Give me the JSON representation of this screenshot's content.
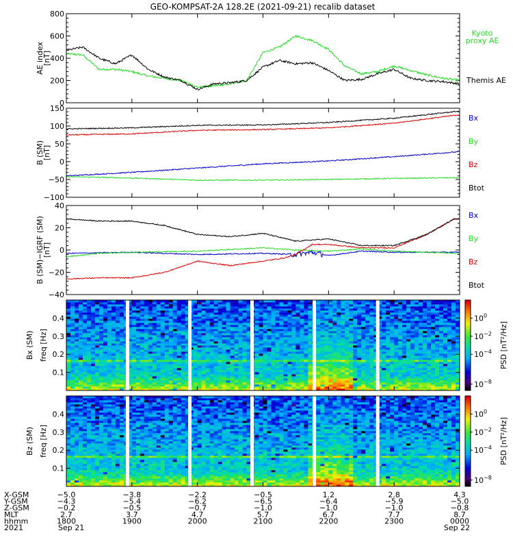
{
  "title": "GEO-KOMPSAT-2A 128.2E (2021-09-21) recalib dataset",
  "colors": {
    "black": "#000000",
    "red": "#dd0000",
    "green": "#22dd22",
    "blue": "#0000cc"
  },
  "chart_data": [
    {
      "type": "line",
      "panel": "ae",
      "ylabel": [
        "AE index",
        "[nT]"
      ],
      "ylim": [
        0,
        800
      ],
      "yticks": [
        "0",
        "200",
        "400",
        "600",
        "800"
      ],
      "xlim": [
        0,
        360
      ],
      "series": [
        {
          "name": "Kyoto proxy AE",
          "label_lines": [
            "Kyoto",
            "proxy AE"
          ],
          "color": "#22dd22",
          "x": [
            0,
            15,
            30,
            45,
            60,
            75,
            90,
            105,
            120,
            135,
            150,
            165,
            180,
            195,
            210,
            225,
            240,
            255,
            270,
            285,
            300,
            315,
            330,
            345,
            360
          ],
          "values": [
            440,
            430,
            300,
            300,
            280,
            240,
            220,
            200,
            140,
            150,
            170,
            200,
            450,
            500,
            600,
            560,
            480,
            330,
            260,
            280,
            330,
            290,
            250,
            220,
            200
          ]
        },
        {
          "name": "Themis AE",
          "label_lines": [
            "Themis AE"
          ],
          "color": "#000000",
          "x": [
            0,
            15,
            30,
            45,
            60,
            75,
            90,
            105,
            120,
            135,
            150,
            165,
            180,
            195,
            210,
            225,
            240,
            255,
            270,
            285,
            300,
            315,
            330,
            345,
            360
          ],
          "values": [
            470,
            500,
            400,
            350,
            430,
            300,
            230,
            200,
            120,
            170,
            180,
            200,
            320,
            380,
            350,
            360,
            290,
            200,
            210,
            260,
            300,
            220,
            200,
            190,
            170
          ]
        }
      ]
    },
    {
      "type": "line",
      "panel": "b_sm",
      "ylabel": [
        "B (SM)",
        "[nT]"
      ],
      "ylim": [
        -100,
        150
      ],
      "yticks": [
        "−100",
        "−50",
        "0",
        "50",
        "100",
        "150"
      ],
      "xlim": [
        0,
        360
      ],
      "series": [
        {
          "name": "Bx",
          "color": "#0000cc",
          "x": [
            0,
            60,
            120,
            180,
            240,
            300,
            360
          ],
          "values": [
            -40,
            -30,
            -18,
            -6,
            2,
            14,
            28
          ]
        },
        {
          "name": "By",
          "color": "#22dd22",
          "x": [
            0,
            60,
            120,
            180,
            240,
            300,
            360
          ],
          "values": [
            -42,
            -46,
            -52,
            -52,
            -50,
            -47,
            -45
          ]
        },
        {
          "name": "Bz",
          "color": "#dd0000",
          "x": [
            0,
            60,
            120,
            180,
            240,
            300,
            360
          ],
          "values": [
            75,
            78,
            88,
            90,
            95,
            108,
            132
          ]
        },
        {
          "name": "Btot",
          "color": "#000000",
          "x": [
            0,
            60,
            120,
            180,
            240,
            300,
            360
          ],
          "values": [
            92,
            95,
            102,
            103,
            110,
            122,
            142
          ]
        }
      ]
    },
    {
      "type": "line",
      "panel": "b_minus_igrf",
      "ylabel": [
        "B (SM)−IGRF (SM)",
        "[nT]"
      ],
      "ylim": [
        -40,
        40
      ],
      "yticks": [
        "−40",
        "−20",
        "0",
        "20",
        "40"
      ],
      "xlim": [
        0,
        360
      ],
      "series": [
        {
          "name": "Bx",
          "color": "#0000cc",
          "x": [
            0,
            60,
            120,
            180,
            210,
            225,
            240,
            270,
            300,
            330,
            360
          ],
          "values": [
            -3,
            -2,
            -4,
            -3,
            -4,
            -2,
            -5,
            -1,
            -2,
            -2,
            -2
          ]
        },
        {
          "name": "By",
          "color": "#22dd22",
          "x": [
            0,
            30,
            60,
            120,
            180,
            210,
            240,
            270,
            300,
            330,
            360
          ],
          "values": [
            -6,
            -3,
            -2,
            -1,
            2,
            0,
            -1,
            1,
            -1,
            -2,
            -3
          ]
        },
        {
          "name": "Bz",
          "color": "#dd0000",
          "x": [
            0,
            30,
            60,
            90,
            120,
            150,
            180,
            200,
            210,
            225,
            240,
            270,
            300,
            330,
            355,
            360
          ],
          "values": [
            -26,
            -25,
            -25,
            -20,
            -10,
            -14,
            -10,
            -7,
            -4,
            5,
            5,
            2,
            2,
            14,
            28,
            28
          ]
        },
        {
          "name": "Btot",
          "color": "#000000",
          "x": [
            0,
            30,
            60,
            90,
            120,
            150,
            180,
            210,
            225,
            240,
            270,
            300,
            330,
            355,
            360
          ],
          "values": [
            28,
            26,
            26,
            22,
            14,
            12,
            15,
            8,
            9,
            10,
            4,
            4,
            14,
            28,
            28
          ]
        }
      ]
    },
    {
      "type": "heatmap",
      "panel": "bx_psd",
      "component_label": "Bx (SM)",
      "ylabel": "freq [Hz]",
      "ylim": [
        0,
        0.5
      ],
      "yticks": [
        "0.1",
        "0.2",
        "0.3",
        "0.4"
      ],
      "xlim": [
        0,
        360
      ]
    },
    {
      "type": "heatmap",
      "panel": "bz_psd",
      "component_label": "Bz (SM)",
      "ylabel": "freq [Hz]",
      "ylim": [
        0,
        0.5
      ],
      "yticks": [
        "0.1",
        "0.2",
        "0.3",
        "0.4"
      ],
      "xlim": [
        0,
        360
      ]
    }
  ],
  "colorbar": {
    "title": "PSD [nT²/Hz]",
    "ticks": [
      {
        "base": "10",
        "exp": "0"
      },
      {
        "base": "10",
        "exp": "−2"
      },
      {
        "base": "10",
        "exp": "−4"
      },
      {
        "base": "10",
        "exp": "−8"
      }
    ]
  },
  "x_axis": {
    "tick_values": [
      0,
      60,
      120,
      180,
      240,
      300,
      360
    ],
    "row_labels": [
      "X-GSM",
      "Y-GSM",
      "Z-GSM",
      "MLT",
      "hhmm",
      "2021"
    ],
    "columns": [
      [
        "−5.0",
        "−4.3",
        "−0.2",
        "2.7",
        "1800",
        "Sep 21"
      ],
      [
        "−3.8",
        "−5.4",
        "−0.5",
        "3.7",
        "1900",
        ""
      ],
      [
        "−2.2",
        "−6.2",
        "−0.7",
        "4.7",
        "2000",
        ""
      ],
      [
        "−0.5",
        "−6.5",
        "−1.0",
        "5.7",
        "2100",
        ""
      ],
      [
        "1.2",
        "−6.4",
        "−1.0",
        "6.7",
        "2200",
        ""
      ],
      [
        "2.8",
        "−5.9",
        "−1.0",
        "7.7",
        "2300",
        ""
      ],
      [
        "4.3",
        "−5.0",
        "−0.8",
        "8.7",
        "0000",
        "Sep 22"
      ]
    ]
  }
}
